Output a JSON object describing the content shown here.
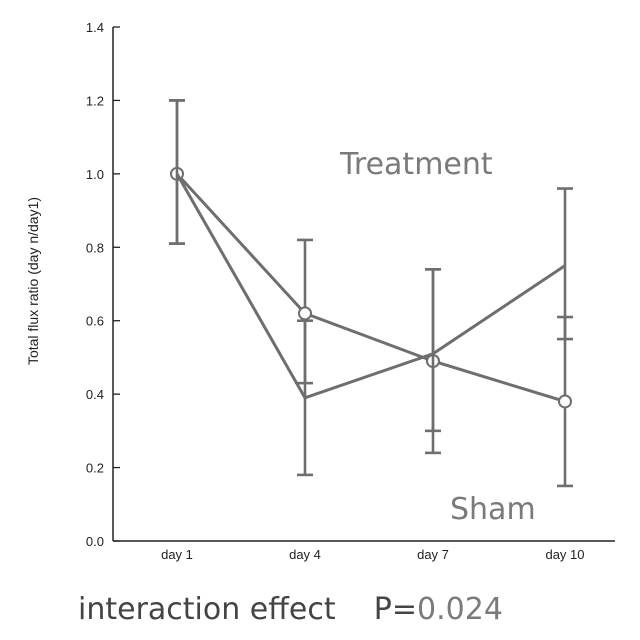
{
  "chart_data": {
    "type": "line",
    "title": "",
    "xlabel": "",
    "ylabel": "Total flux ratio (day n/day1)",
    "categories": [
      "day 1",
      "day 4",
      "day 7",
      "day 10"
    ],
    "ylim": [
      0.0,
      1.4
    ],
    "yticks": [
      "0.0",
      "0.2",
      "0.4",
      "0.6",
      "0.8",
      "1.0",
      "1.2",
      "1.4"
    ],
    "grid": false,
    "series": [
      {
        "name": "Treatment",
        "marker": "circle",
        "values": [
          1.0,
          0.62,
          0.49,
          0.38
        ],
        "err_low": [
          0.81,
          0.43,
          0.24,
          0.15
        ],
        "err_high": [
          1.2,
          0.82,
          0.74,
          0.61
        ]
      },
      {
        "name": "Sham",
        "marker": "none",
        "values": [
          1.0,
          0.39,
          0.51,
          0.75
        ],
        "err_low": [
          0.81,
          0.18,
          0.3,
          0.55
        ],
        "err_high": [
          1.2,
          0.6,
          0.74,
          0.96
        ]
      }
    ],
    "annotations": [
      "Treatment",
      "Sham"
    ],
    "line_color": "#6e6e6e"
  },
  "footer": {
    "label": "interaction effect",
    "p_prefix": "P=",
    "p_value": "0.024"
  }
}
